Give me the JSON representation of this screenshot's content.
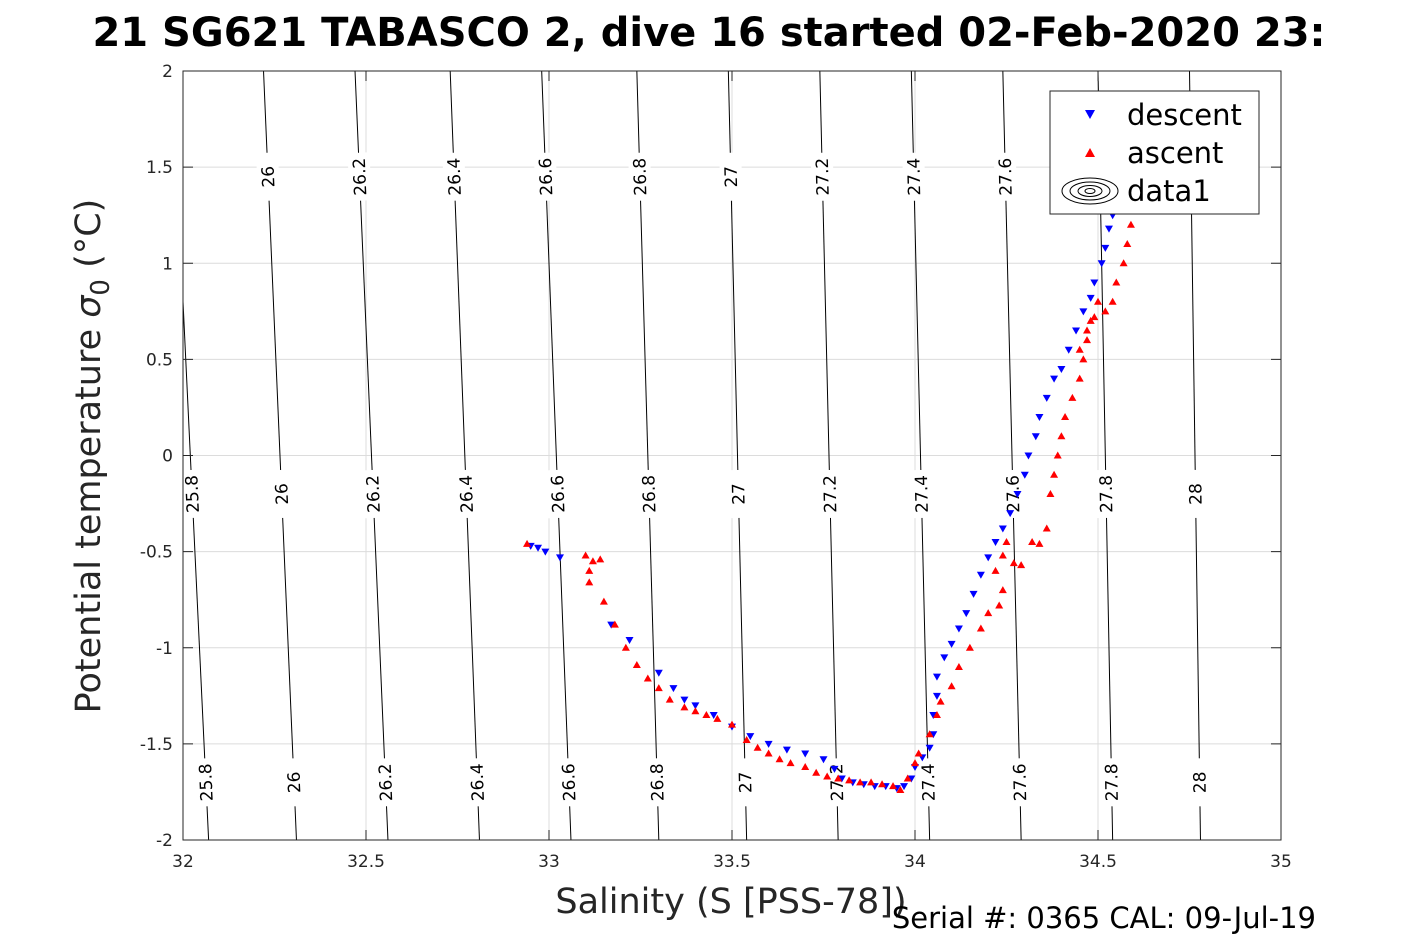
{
  "chart_data": {
    "type": "scatter",
    "title": "21 SG621 TABASCO 2, dive 16 started 02-Feb-2020 23:",
    "xlabel": "Salinity (S [PSS-78])",
    "ylabel_main": "Potential temperature ",
    "ylabel_sigma": "σ",
    "ylabel_sub": "0",
    "ylabel_unit": " (°C)",
    "xlim": [
      32,
      35
    ],
    "ylim": [
      -2,
      2
    ],
    "xticks": [
      "32",
      "32.5",
      "33",
      "33.5",
      "34",
      "34.5",
      "35"
    ],
    "yticks": [
      "-2",
      "-1.5",
      "-1",
      "-0.5",
      "0",
      "0.5",
      "1",
      "1.5",
      "2"
    ],
    "grid": true,
    "legend_position": "top-right",
    "legend": [
      "descent",
      "ascent",
      "data1"
    ],
    "contours": {
      "levels": [
        25.8,
        26,
        26.2,
        26.4,
        26.6,
        26.8,
        27,
        27.2,
        27.4,
        27.6,
        27.8,
        28
      ],
      "labels": [
        "25.8",
        "26",
        "26.2",
        "26.4",
        "26.6",
        "26.8",
        "27",
        "27.2",
        "27.4",
        "27.6",
        "27.8",
        "28"
      ],
      "x_at_bottom": [
        32.07,
        32.31,
        32.56,
        32.81,
        33.06,
        33.3,
        33.54,
        33.79,
        34.04,
        34.29,
        34.54,
        34.78
      ],
      "x_at_top": [
        31.97,
        32.22,
        32.47,
        32.73,
        32.98,
        33.24,
        33.49,
        33.74,
        33.99,
        34.24,
        34.5,
        34.75
      ],
      "labels_row_top_y": 1.45,
      "labels_row_mid_y": -0.2,
      "labels_row_bottom_y": -1.7
    },
    "series": [
      {
        "name": "descent",
        "color": "#0000ff",
        "marker": "triangle-down",
        "points": [
          [
            32.95,
            -0.47
          ],
          [
            32.97,
            -0.48
          ],
          [
            32.99,
            -0.5
          ],
          [
            33.03,
            -0.53
          ],
          [
            33.17,
            -0.88
          ],
          [
            33.22,
            -0.96
          ],
          [
            33.3,
            -1.13
          ],
          [
            33.34,
            -1.21
          ],
          [
            33.37,
            -1.27
          ],
          [
            33.4,
            -1.3
          ],
          [
            33.45,
            -1.35
          ],
          [
            33.5,
            -1.41
          ],
          [
            33.55,
            -1.46
          ],
          [
            33.6,
            -1.5
          ],
          [
            33.65,
            -1.53
          ],
          [
            33.7,
            -1.55
          ],
          [
            33.75,
            -1.58
          ],
          [
            33.78,
            -1.63
          ],
          [
            33.8,
            -1.68
          ],
          [
            33.83,
            -1.7
          ],
          [
            33.86,
            -1.71
          ],
          [
            33.89,
            -1.72
          ],
          [
            33.92,
            -1.72
          ],
          [
            33.95,
            -1.73
          ],
          [
            33.97,
            -1.72
          ],
          [
            33.99,
            -1.68
          ],
          [
            34.0,
            -1.62
          ],
          [
            34.02,
            -1.57
          ],
          [
            34.04,
            -1.52
          ],
          [
            34.05,
            -1.45
          ],
          [
            34.05,
            -1.35
          ],
          [
            34.06,
            -1.25
          ],
          [
            34.06,
            -1.15
          ],
          [
            34.08,
            -1.05
          ],
          [
            34.1,
            -0.98
          ],
          [
            34.12,
            -0.9
          ],
          [
            34.14,
            -0.82
          ],
          [
            34.16,
            -0.72
          ],
          [
            34.18,
            -0.62
          ],
          [
            34.2,
            -0.53
          ],
          [
            34.22,
            -0.45
          ],
          [
            34.24,
            -0.38
          ],
          [
            34.26,
            -0.3
          ],
          [
            34.28,
            -0.2
          ],
          [
            34.3,
            -0.1
          ],
          [
            34.31,
            0.0
          ],
          [
            34.33,
            0.1
          ],
          [
            34.34,
            0.2
          ],
          [
            34.36,
            0.3
          ],
          [
            34.38,
            0.4
          ],
          [
            34.4,
            0.45
          ],
          [
            34.42,
            0.55
          ],
          [
            34.44,
            0.65
          ],
          [
            34.46,
            0.75
          ],
          [
            34.48,
            0.82
          ],
          [
            34.49,
            0.9
          ],
          [
            34.51,
            1.0
          ],
          [
            34.52,
            1.08
          ],
          [
            34.53,
            1.18
          ],
          [
            34.54,
            1.25
          ],
          [
            34.55,
            1.3
          ]
        ]
      },
      {
        "name": "ascent",
        "color": "#ff0000",
        "marker": "triangle-up",
        "points": [
          [
            32.94,
            -0.46
          ],
          [
            33.1,
            -0.52
          ],
          [
            33.11,
            -0.6
          ],
          [
            33.12,
            -0.55
          ],
          [
            33.14,
            -0.54
          ],
          [
            33.11,
            -0.66
          ],
          [
            33.15,
            -0.76
          ],
          [
            33.18,
            -0.88
          ],
          [
            33.21,
            -1.0
          ],
          [
            33.24,
            -1.09
          ],
          [
            33.27,
            -1.16
          ],
          [
            33.3,
            -1.21
          ],
          [
            33.33,
            -1.27
          ],
          [
            33.37,
            -1.31
          ],
          [
            33.4,
            -1.33
          ],
          [
            33.43,
            -1.35
          ],
          [
            33.46,
            -1.37
          ],
          [
            33.5,
            -1.4
          ],
          [
            33.54,
            -1.48
          ],
          [
            33.57,
            -1.52
          ],
          [
            33.6,
            -1.55
          ],
          [
            33.63,
            -1.58
          ],
          [
            33.66,
            -1.6
          ],
          [
            33.7,
            -1.62
          ],
          [
            33.73,
            -1.65
          ],
          [
            33.76,
            -1.67
          ],
          [
            33.79,
            -1.68
          ],
          [
            33.82,
            -1.69
          ],
          [
            33.85,
            -1.7
          ],
          [
            33.88,
            -1.7
          ],
          [
            33.91,
            -1.71
          ],
          [
            33.94,
            -1.72
          ],
          [
            33.96,
            -1.74
          ],
          [
            33.98,
            -1.68
          ],
          [
            34.0,
            -1.6
          ],
          [
            34.01,
            -1.55
          ],
          [
            34.04,
            -1.45
          ],
          [
            34.06,
            -1.35
          ],
          [
            34.07,
            -1.28
          ],
          [
            34.1,
            -1.2
          ],
          [
            34.12,
            -1.1
          ],
          [
            34.15,
            -1.0
          ],
          [
            34.18,
            -0.9
          ],
          [
            34.2,
            -0.82
          ],
          [
            34.23,
            -0.78
          ],
          [
            34.24,
            -0.7
          ],
          [
            34.22,
            -0.6
          ],
          [
            34.24,
            -0.52
          ],
          [
            34.25,
            -0.45
          ],
          [
            34.27,
            -0.56
          ],
          [
            34.29,
            -0.57
          ],
          [
            34.32,
            -0.45
          ],
          [
            34.34,
            -0.46
          ],
          [
            34.36,
            -0.38
          ],
          [
            34.37,
            -0.2
          ],
          [
            34.38,
            -0.1
          ],
          [
            34.39,
            0.0
          ],
          [
            34.4,
            0.1
          ],
          [
            34.41,
            0.2
          ],
          [
            34.43,
            0.3
          ],
          [
            34.45,
            0.4
          ],
          [
            34.46,
            0.5
          ],
          [
            34.47,
            0.6
          ],
          [
            34.48,
            0.7
          ],
          [
            34.52,
            0.75
          ],
          [
            34.54,
            0.8
          ],
          [
            34.55,
            0.9
          ],
          [
            34.57,
            1.0
          ],
          [
            34.58,
            1.1
          ],
          [
            34.59,
            1.2
          ],
          [
            34.6,
            1.28
          ],
          [
            34.45,
            0.55
          ],
          [
            34.47,
            0.65
          ],
          [
            34.49,
            0.72
          ],
          [
            34.5,
            0.8
          ]
        ]
      }
    ]
  },
  "footer": {
    "serial": "Serial #: 0365  CAL: 09-Jul-19"
  }
}
